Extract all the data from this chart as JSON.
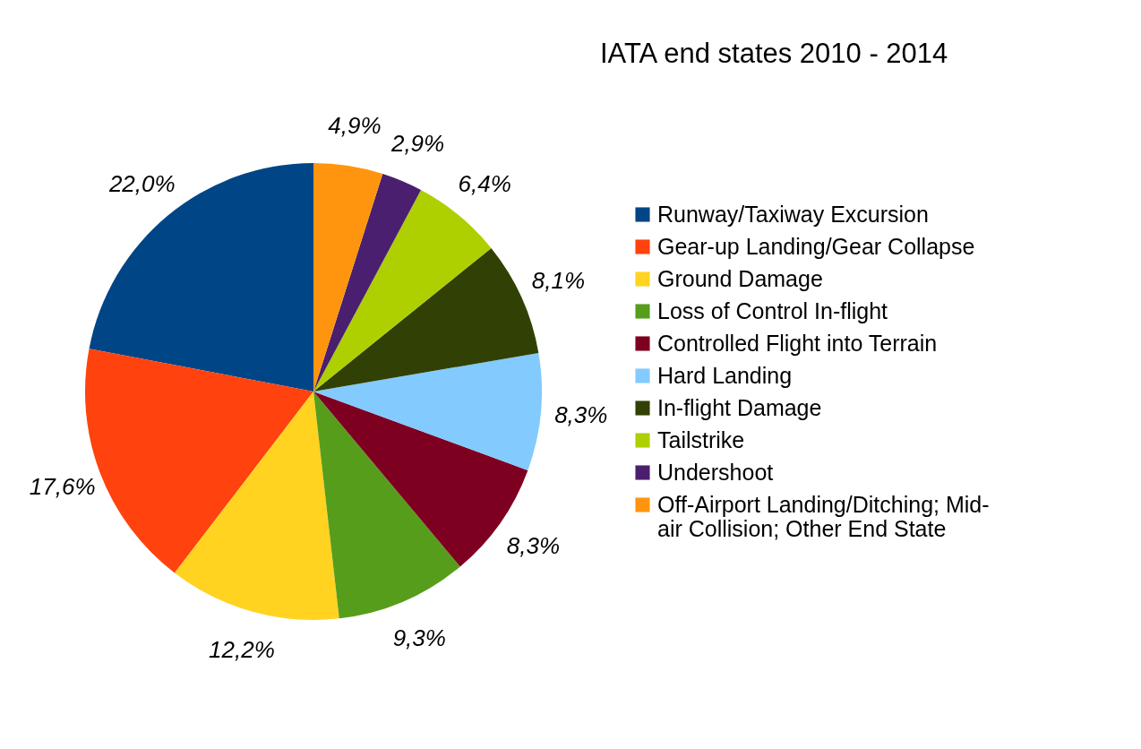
{
  "chart_data": {
    "type": "pie",
    "title": "IATA end states 2010 - 2014",
    "categories": [
      "Runway/Taxiway Excursion",
      "Gear-up Landing/Gear Collapse",
      "Ground Damage",
      "Loss of Control In-flight",
      "Controlled Flight into Terrain",
      "Hard Landing",
      "In-flight Damage",
      "Tailstrike",
      "Undershoot",
      "Off-Airport Landing/Ditching; Mid-air Collision; Other End State"
    ],
    "values": [
      22.0,
      17.6,
      12.2,
      9.3,
      8.3,
      8.3,
      8.1,
      6.4,
      2.9,
      4.9
    ],
    "value_labels": [
      "22,0%",
      "17,6%",
      "12,2%",
      "9,3%",
      "8,3%",
      "8,3%",
      "8,1%",
      "6,4%",
      "2,9%",
      "4,9%"
    ],
    "colors": [
      "#004586",
      "#ff420e",
      "#ffd320",
      "#579d1c",
      "#7e0021",
      "#83caff",
      "#314004",
      "#aecf00",
      "#4b1f6f",
      "#ff950e"
    ],
    "legend": "right"
  }
}
